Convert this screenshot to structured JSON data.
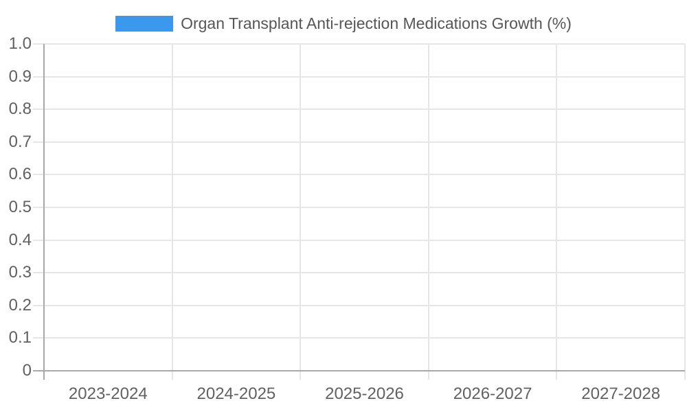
{
  "chart_data": {
    "type": "bar",
    "title": "Organ Transplant Anti-rejection Medications Growth (%)",
    "categories": [
      "2023-2024",
      "2024-2025",
      "2025-2026",
      "2026-2027",
      "2027-2028"
    ],
    "series": [
      {
        "name": "Organ Transplant Anti-rejection Medications Growth (%)",
        "values": []
      }
    ],
    "xlabel": "",
    "ylabel": "",
    "ylim": [
      0,
      1
    ],
    "y_ticks": [
      "1.0",
      "0.9",
      "0.8",
      "0.7",
      "0.6",
      "0.5",
      "0.4",
      "0.3",
      "0.2",
      "0.1",
      "0"
    ],
    "grid": true,
    "legend": {
      "position": "top",
      "items": [
        {
          "label": "Organ Transplant Anti-rejection Medications Growth (%)",
          "color": "#3a99ec"
        }
      ]
    }
  },
  "colors": {
    "series_blue": "#3a99ec",
    "gridline": "#e6e6e6",
    "axis": "#a8a8a8",
    "tick_text": "#616161",
    "legend_text": "#565656",
    "background": "#ffffff"
  }
}
